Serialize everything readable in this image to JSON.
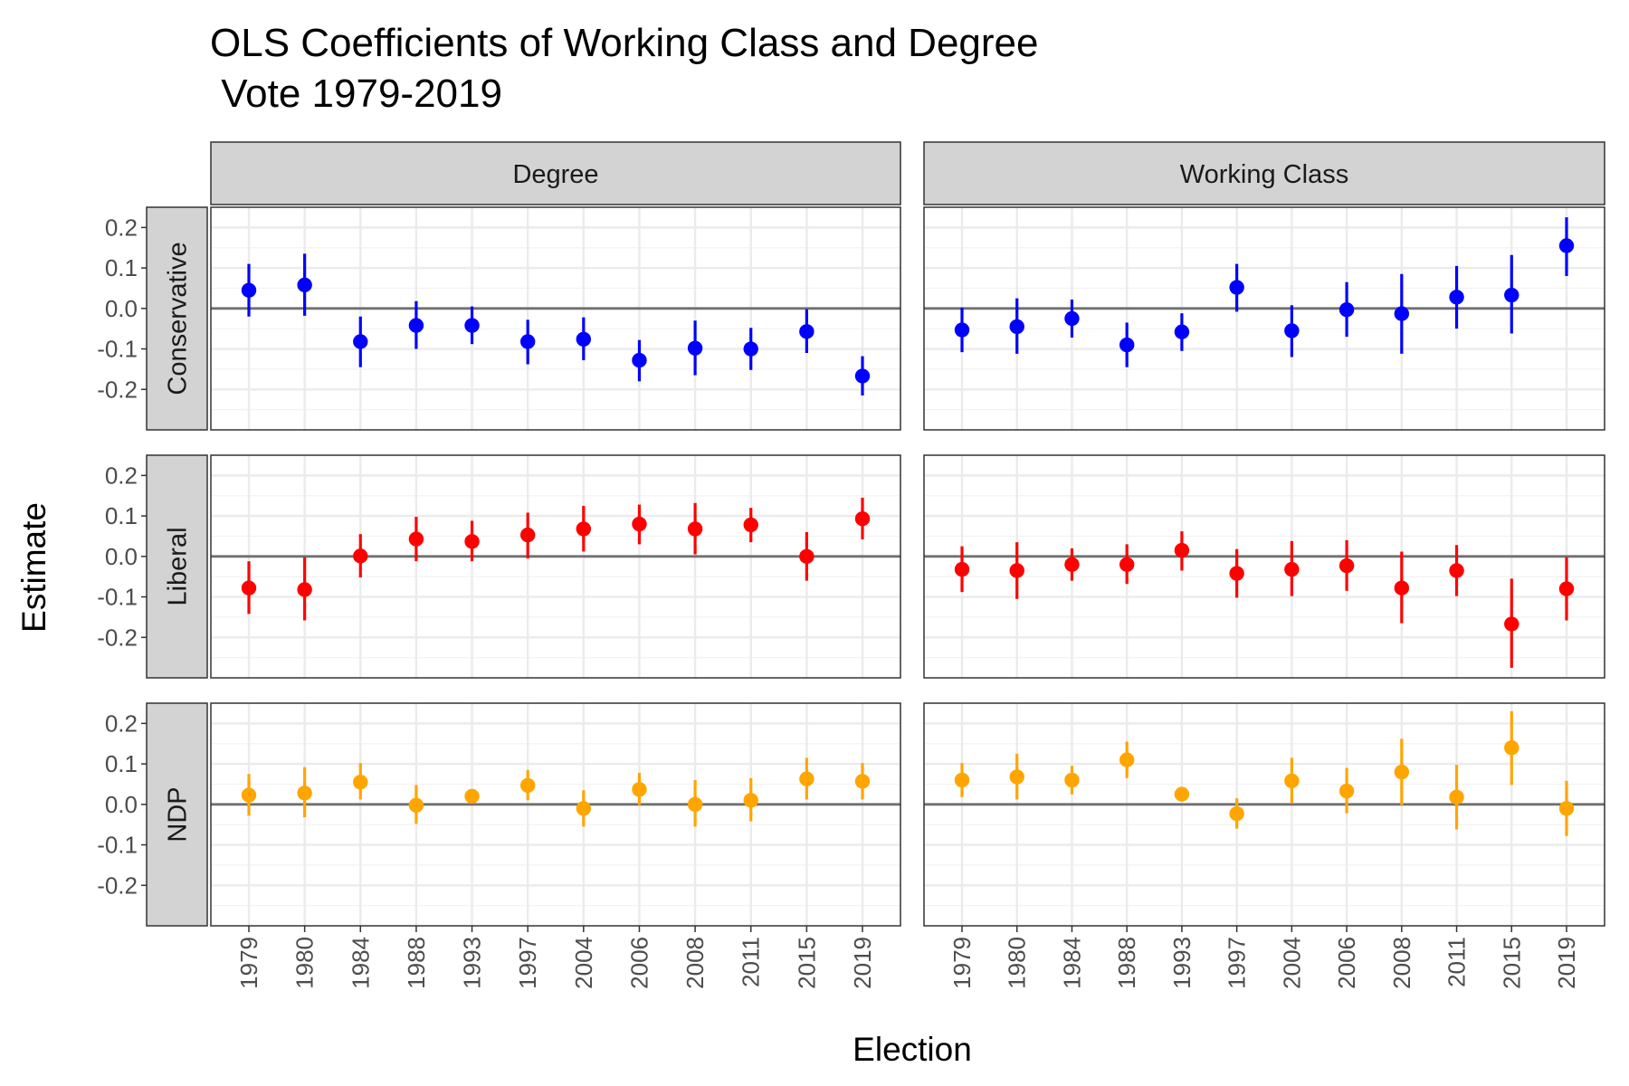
{
  "title_line1": "OLS Coefficients of Working Class and Degree",
  "title_line2": " Vote 1979-2019",
  "chart_data": {
    "type": "scatter",
    "subtype": "point-range faceted grid",
    "title": "OLS Coefficients of Working Class and Degree\n Vote 1979-2019",
    "xlabel": "Election",
    "ylabel": "Estimate",
    "ylim": [
      -0.3,
      0.25
    ],
    "yticks": [
      -0.2,
      -0.1,
      0.0,
      0.1,
      0.2
    ],
    "ytick_labels": [
      "-0.2",
      "-0.1",
      "0.0",
      "0.1",
      "0.2"
    ],
    "categories": [
      "1979",
      "1980",
      "1984",
      "1988",
      "1993",
      "1997",
      "2004",
      "2006",
      "2008",
      "2011",
      "2015",
      "2019"
    ],
    "reference_line": 0,
    "grid": true,
    "column_facets": [
      "Degree",
      "Working Class"
    ],
    "row_facets": [
      "Conservative",
      "Liberal",
      "NDP"
    ],
    "colors": {
      "Conservative": "#0000ff",
      "Liberal": "#ff0000",
      "NDP": "#ffa500"
    },
    "panels": [
      {
        "column": "Degree",
        "row": "Conservative",
        "estimate": [
          0.045,
          0.058,
          -0.082,
          -0.042,
          -0.042,
          -0.082,
          -0.076,
          -0.128,
          -0.098,
          -0.1,
          -0.057,
          -0.167
        ],
        "lower": [
          -0.02,
          -0.018,
          -0.145,
          -0.1,
          -0.088,
          -0.138,
          -0.128,
          -0.18,
          -0.165,
          -0.152,
          -0.11,
          -0.215
        ],
        "upper": [
          0.11,
          0.135,
          -0.02,
          0.018,
          0.005,
          -0.028,
          -0.022,
          -0.078,
          -0.03,
          -0.048,
          -0.002,
          -0.118
        ]
      },
      {
        "column": "Working Class",
        "row": "Conservative",
        "estimate": [
          -0.053,
          -0.045,
          -0.025,
          -0.09,
          -0.058,
          0.052,
          -0.055,
          -0.003,
          -0.013,
          0.028,
          0.033,
          0.155
        ],
        "lower": [
          -0.108,
          -0.112,
          -0.072,
          -0.145,
          -0.105,
          -0.008,
          -0.12,
          -0.07,
          -0.112,
          -0.05,
          -0.062,
          0.08
        ],
        "upper": [
          0.002,
          0.025,
          0.022,
          -0.035,
          -0.012,
          0.11,
          0.008,
          0.065,
          0.085,
          0.105,
          0.132,
          0.225
        ]
      },
      {
        "column": "Degree",
        "row": "Liberal",
        "estimate": [
          -0.078,
          -0.082,
          0.001,
          0.043,
          0.037,
          0.053,
          0.068,
          0.08,
          0.068,
          0.078,
          0.0,
          0.093
        ],
        "lower": [
          -0.142,
          -0.158,
          -0.052,
          -0.012,
          -0.012,
          -0.005,
          0.012,
          0.03,
          0.005,
          0.035,
          -0.06,
          0.042
        ],
        "upper": [
          -0.012,
          -0.002,
          0.055,
          0.098,
          0.088,
          0.108,
          0.125,
          0.128,
          0.132,
          0.12,
          0.06,
          0.145
        ]
      },
      {
        "column": "Working Class",
        "row": "Liberal",
        "estimate": [
          -0.032,
          -0.035,
          -0.02,
          -0.02,
          0.015,
          -0.042,
          -0.032,
          -0.023,
          -0.078,
          -0.035,
          -0.167,
          -0.08
        ],
        "lower": [
          -0.088,
          -0.105,
          -0.06,
          -0.068,
          -0.035,
          -0.102,
          -0.098,
          -0.085,
          -0.165,
          -0.098,
          -0.275,
          -0.158
        ],
        "upper": [
          0.025,
          0.035,
          0.02,
          0.03,
          0.062,
          0.018,
          0.038,
          0.04,
          0.012,
          0.028,
          -0.055,
          -0.002
        ]
      },
      {
        "column": "Degree",
        "row": "NDP",
        "estimate": [
          0.023,
          0.028,
          0.055,
          -0.002,
          0.02,
          0.047,
          -0.01,
          0.037,
          0.0,
          0.01,
          0.063,
          0.057
        ],
        "lower": [
          -0.028,
          -0.032,
          0.012,
          -0.048,
          0.005,
          0.01,
          -0.055,
          -0.002,
          -0.055,
          -0.042,
          0.012,
          0.012
        ],
        "upper": [
          0.075,
          0.092,
          0.102,
          0.048,
          0.035,
          0.085,
          0.035,
          0.078,
          0.06,
          0.065,
          0.115,
          0.102
        ]
      },
      {
        "column": "Working Class",
        "row": "NDP",
        "estimate": [
          0.06,
          0.068,
          0.06,
          0.11,
          0.025,
          -0.023,
          0.058,
          0.033,
          0.08,
          0.018,
          0.14,
          -0.01
        ],
        "lower": [
          0.018,
          0.012,
          0.025,
          0.065,
          0.012,
          -0.06,
          0.002,
          -0.022,
          -0.002,
          -0.062,
          0.048,
          -0.078
        ],
        "upper": [
          0.102,
          0.125,
          0.095,
          0.155,
          0.038,
          0.015,
          0.115,
          0.09,
          0.162,
          0.098,
          0.23,
          0.058
        ]
      }
    ]
  }
}
